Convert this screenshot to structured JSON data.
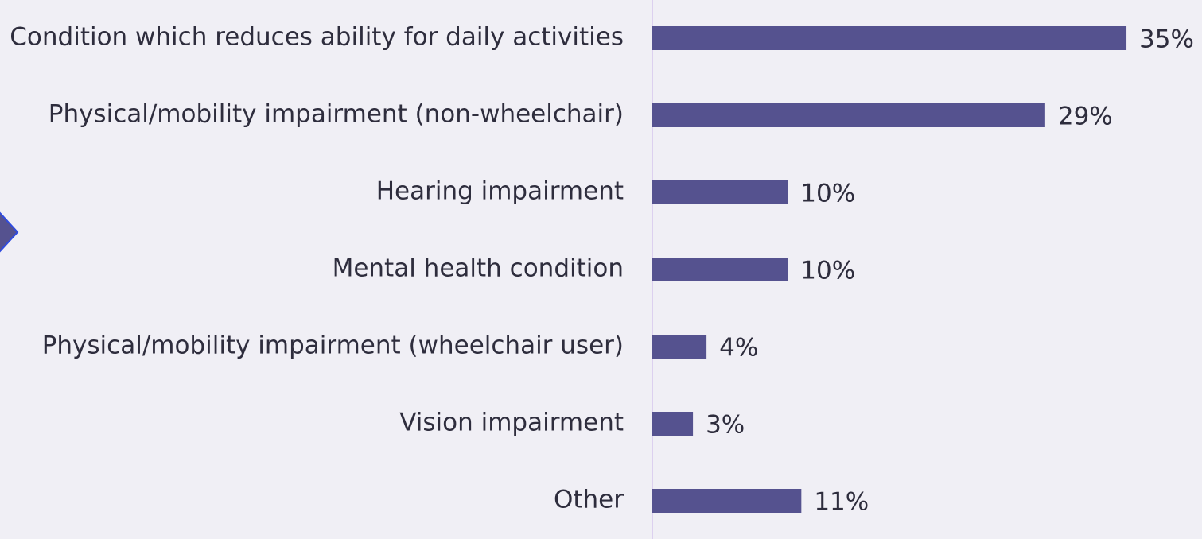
{
  "chart_data": {
    "type": "hbar",
    "categories": [
      "Condition which reduces ability for daily activities",
      "Physical/mobility impairment (non-wheelchair)",
      "Hearing impairment",
      "Mental health condition",
      "Physical/mobility impairment (wheelchair user)",
      "Vision impairment",
      "Other"
    ],
    "values": [
      35,
      29,
      10,
      10,
      4,
      3,
      11
    ],
    "value_labels": [
      "35%",
      "29%",
      "10%",
      "10%",
      "4%",
      "3%",
      "11%"
    ],
    "color": "#55528f"
  }
}
